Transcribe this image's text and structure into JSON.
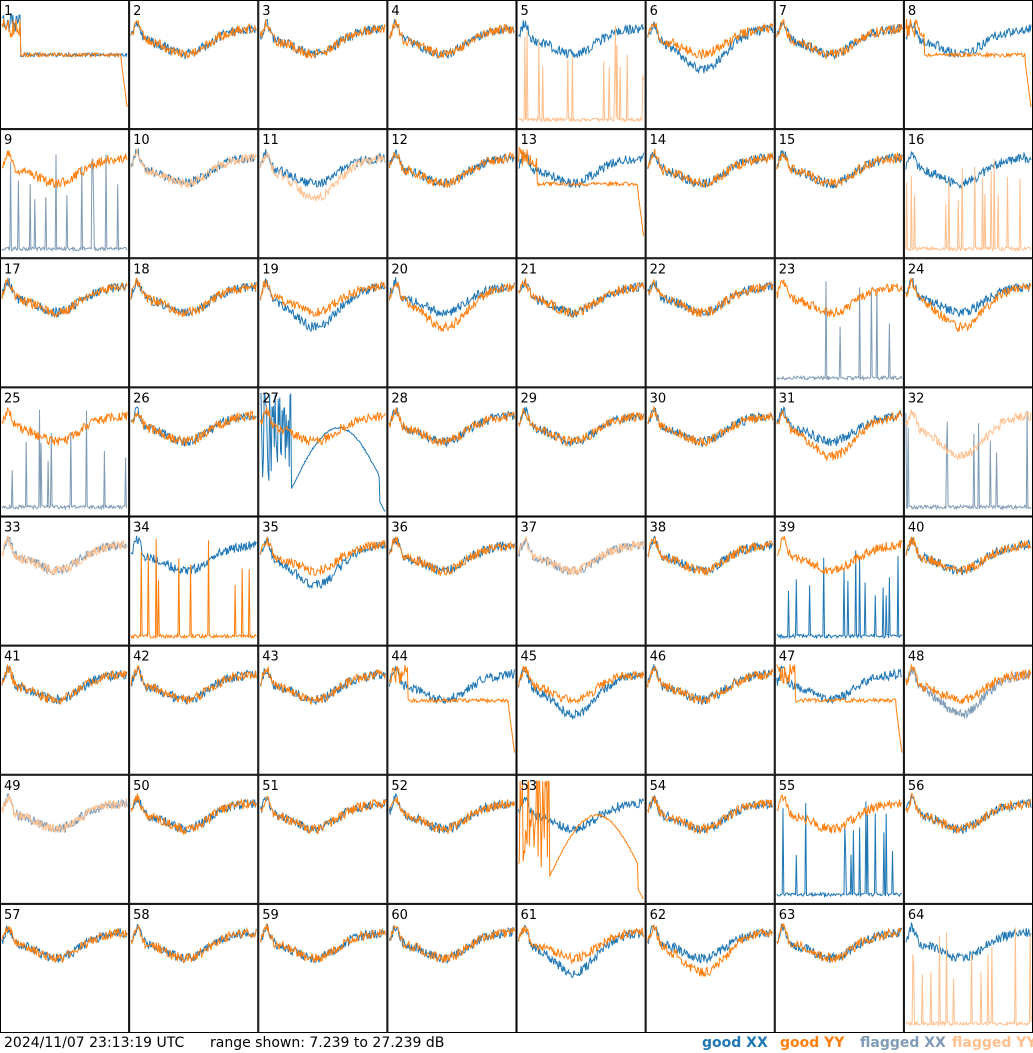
{
  "timestamp": "2024/11/07 23:13:19 UTC",
  "range_text": "range shown: 7.239 to 27.239 dB",
  "legend": [
    {
      "label": "good XX",
      "color": "#1f77b4"
    },
    {
      "label": "good YY",
      "color": "#ff7f0e"
    },
    {
      "label": "flagged XX",
      "color": "#7f9bb5"
    },
    {
      "label": "flagged YY",
      "color": "#ffc08e"
    }
  ],
  "chart_data": {
    "type": "line",
    "title": "",
    "xlabel": "",
    "ylabel": "",
    "ylim": [
      7.239,
      27.239
    ],
    "panels": [
      {
        "id": "1",
        "xx": "good",
        "yy": "good",
        "xx_shape": "flat",
        "yy_shape": "flat-drop"
      },
      {
        "id": "2",
        "xx": "good",
        "yy": "good",
        "xx_shape": "normal",
        "yy_shape": "normal"
      },
      {
        "id": "3",
        "xx": "good",
        "yy": "good",
        "xx_shape": "normal",
        "yy_shape": "normal"
      },
      {
        "id": "4",
        "xx": "good",
        "yy": "good",
        "xx_shape": "normal",
        "yy_shape": "normal"
      },
      {
        "id": "5",
        "xx": "good",
        "yy": "flagged",
        "xx_shape": "normal",
        "yy_shape": "spikes"
      },
      {
        "id": "6",
        "xx": "good",
        "yy": "good",
        "xx_shape": "deep",
        "yy_shape": "normal"
      },
      {
        "id": "7",
        "xx": "good",
        "yy": "good",
        "xx_shape": "normal",
        "yy_shape": "normal"
      },
      {
        "id": "8",
        "xx": "good",
        "yy": "good",
        "xx_shape": "normal",
        "yy_shape": "flat-drop"
      },
      {
        "id": "9",
        "xx": "flagged",
        "yy": "good",
        "xx_shape": "spikes",
        "yy_shape": "normal"
      },
      {
        "id": "10",
        "xx": "good",
        "yy": "flagged",
        "xx_shape": "normal",
        "yy_shape": "normal"
      },
      {
        "id": "11",
        "xx": "good",
        "yy": "flagged",
        "xx_shape": "normal",
        "yy_shape": "deep"
      },
      {
        "id": "12",
        "xx": "good",
        "yy": "good",
        "xx_shape": "normal",
        "yy_shape": "normal"
      },
      {
        "id": "13",
        "xx": "good",
        "yy": "good",
        "xx_shape": "normal",
        "yy_shape": "flat-drop"
      },
      {
        "id": "14",
        "xx": "good",
        "yy": "good",
        "xx_shape": "normal",
        "yy_shape": "normal"
      },
      {
        "id": "15",
        "xx": "good",
        "yy": "good",
        "xx_shape": "normal",
        "yy_shape": "normal"
      },
      {
        "id": "16",
        "xx": "good",
        "yy": "flagged",
        "xx_shape": "normal",
        "yy_shape": "spikes"
      },
      {
        "id": "17",
        "xx": "good",
        "yy": "good",
        "xx_shape": "normal",
        "yy_shape": "normal"
      },
      {
        "id": "18",
        "xx": "good",
        "yy": "good",
        "xx_shape": "normal",
        "yy_shape": "normal"
      },
      {
        "id": "19",
        "xx": "good",
        "yy": "good",
        "xx_shape": "deep",
        "yy_shape": "normal"
      },
      {
        "id": "20",
        "xx": "good",
        "yy": "good",
        "xx_shape": "normal",
        "yy_shape": "deep"
      },
      {
        "id": "21",
        "xx": "good",
        "yy": "good",
        "xx_shape": "normal",
        "yy_shape": "normal"
      },
      {
        "id": "22",
        "xx": "good",
        "yy": "good",
        "xx_shape": "normal",
        "yy_shape": "normal"
      },
      {
        "id": "23",
        "xx": "flagged",
        "yy": "good",
        "xx_shape": "spikes",
        "yy_shape": "normal"
      },
      {
        "id": "24",
        "xx": "good",
        "yy": "good",
        "xx_shape": "normal",
        "yy_shape": "deep"
      },
      {
        "id": "25",
        "xx": "flagged",
        "yy": "good",
        "xx_shape": "spikes",
        "yy_shape": "normal"
      },
      {
        "id": "26",
        "xx": "good",
        "yy": "good",
        "xx_shape": "normal",
        "yy_shape": "normal"
      },
      {
        "id": "27",
        "xx": "good",
        "yy": "good",
        "xx_shape": "hump",
        "yy_shape": "normal"
      },
      {
        "id": "28",
        "xx": "good",
        "yy": "good",
        "xx_shape": "normal",
        "yy_shape": "normal"
      },
      {
        "id": "29",
        "xx": "good",
        "yy": "good",
        "xx_shape": "normal",
        "yy_shape": "normal"
      },
      {
        "id": "30",
        "xx": "good",
        "yy": "good",
        "xx_shape": "normal",
        "yy_shape": "normal"
      },
      {
        "id": "31",
        "xx": "good",
        "yy": "good",
        "xx_shape": "normal",
        "yy_shape": "deep"
      },
      {
        "id": "32",
        "xx": "flagged",
        "yy": "flagged",
        "xx_shape": "spikes",
        "yy_shape": "deep"
      },
      {
        "id": "33",
        "xx": "flagged",
        "yy": "flagged",
        "xx_shape": "normal",
        "yy_shape": "normal"
      },
      {
        "id": "34",
        "xx": "good",
        "yy": "good",
        "xx_shape": "normal",
        "yy_shape": "spikes"
      },
      {
        "id": "35",
        "xx": "good",
        "yy": "good",
        "xx_shape": "deep",
        "yy_shape": "normal"
      },
      {
        "id": "36",
        "xx": "good",
        "yy": "good",
        "xx_shape": "normal",
        "yy_shape": "normal"
      },
      {
        "id": "37",
        "xx": "flagged",
        "yy": "flagged",
        "xx_shape": "normal",
        "yy_shape": "normal"
      },
      {
        "id": "38",
        "xx": "good",
        "yy": "good",
        "xx_shape": "normal",
        "yy_shape": "normal"
      },
      {
        "id": "39",
        "xx": "good",
        "yy": "good",
        "xx_shape": "spikes",
        "yy_shape": "normal"
      },
      {
        "id": "40",
        "xx": "good",
        "yy": "good",
        "xx_shape": "normal",
        "yy_shape": "normal"
      },
      {
        "id": "41",
        "xx": "good",
        "yy": "good",
        "xx_shape": "normal",
        "yy_shape": "normal"
      },
      {
        "id": "42",
        "xx": "good",
        "yy": "good",
        "xx_shape": "normal",
        "yy_shape": "normal"
      },
      {
        "id": "43",
        "xx": "good",
        "yy": "good",
        "xx_shape": "normal",
        "yy_shape": "normal"
      },
      {
        "id": "44",
        "xx": "good",
        "yy": "good",
        "xx_shape": "normal",
        "yy_shape": "flat-drop"
      },
      {
        "id": "45",
        "xx": "good",
        "yy": "good",
        "xx_shape": "deep",
        "yy_shape": "normal"
      },
      {
        "id": "46",
        "xx": "good",
        "yy": "good",
        "xx_shape": "normal",
        "yy_shape": "normal"
      },
      {
        "id": "47",
        "xx": "good",
        "yy": "good",
        "xx_shape": "normal",
        "yy_shape": "flat-drop"
      },
      {
        "id": "48",
        "xx": "flagged",
        "yy": "good",
        "xx_shape": "deep",
        "yy_shape": "normal"
      },
      {
        "id": "49",
        "xx": "flagged",
        "yy": "flagged",
        "xx_shape": "normal",
        "yy_shape": "normal"
      },
      {
        "id": "50",
        "xx": "good",
        "yy": "good",
        "xx_shape": "normal",
        "yy_shape": "normal"
      },
      {
        "id": "51",
        "xx": "good",
        "yy": "good",
        "xx_shape": "normal",
        "yy_shape": "normal"
      },
      {
        "id": "52",
        "xx": "good",
        "yy": "good",
        "xx_shape": "normal",
        "yy_shape": "normal"
      },
      {
        "id": "53",
        "xx": "good",
        "yy": "good",
        "xx_shape": "normal",
        "yy_shape": "hump"
      },
      {
        "id": "54",
        "xx": "good",
        "yy": "good",
        "xx_shape": "normal",
        "yy_shape": "normal"
      },
      {
        "id": "55",
        "xx": "good",
        "yy": "good",
        "xx_shape": "spikes",
        "yy_shape": "normal"
      },
      {
        "id": "56",
        "xx": "good",
        "yy": "good",
        "xx_shape": "normal",
        "yy_shape": "normal"
      },
      {
        "id": "57",
        "xx": "good",
        "yy": "good",
        "xx_shape": "normal",
        "yy_shape": "normal"
      },
      {
        "id": "58",
        "xx": "good",
        "yy": "good",
        "xx_shape": "normal",
        "yy_shape": "normal"
      },
      {
        "id": "59",
        "xx": "good",
        "yy": "good",
        "xx_shape": "normal",
        "yy_shape": "normal"
      },
      {
        "id": "60",
        "xx": "good",
        "yy": "good",
        "xx_shape": "normal",
        "yy_shape": "normal"
      },
      {
        "id": "61",
        "xx": "good",
        "yy": "good",
        "xx_shape": "deep",
        "yy_shape": "normal"
      },
      {
        "id": "62",
        "xx": "good",
        "yy": "good",
        "xx_shape": "normal",
        "yy_shape": "deep"
      },
      {
        "id": "63",
        "xx": "good",
        "yy": "good",
        "xx_shape": "normal",
        "yy_shape": "normal"
      },
      {
        "id": "64",
        "xx": "good",
        "yy": "flagged",
        "xx_shape": "normal",
        "yy_shape": "spikes"
      }
    ]
  }
}
